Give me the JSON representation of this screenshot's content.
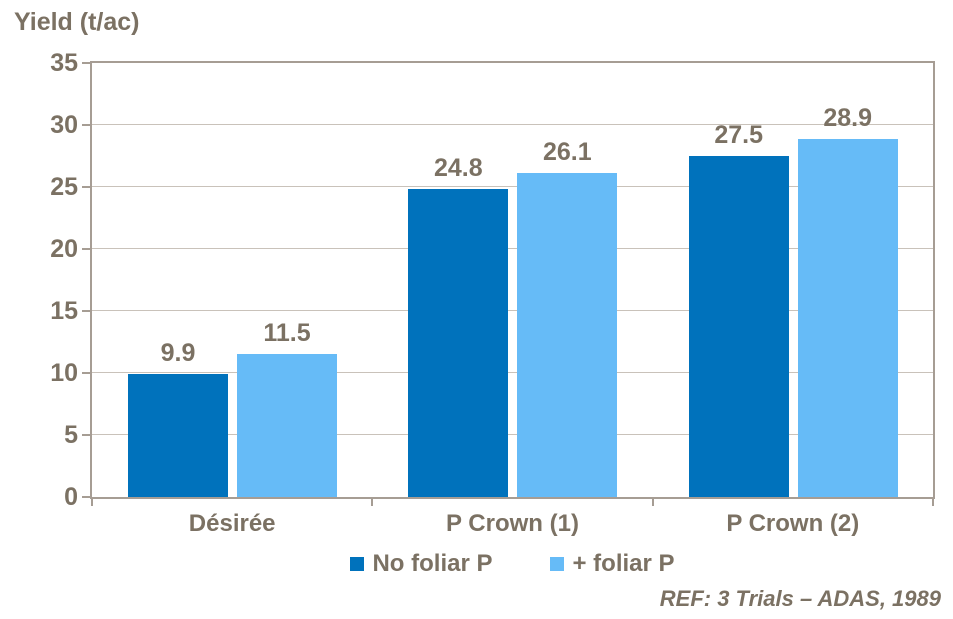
{
  "chart_data": {
    "type": "bar",
    "title": "Yield (t/ac)",
    "ylabel": "Yield (t/ac)",
    "xlabel": "",
    "categories": [
      "Désirée",
      "P Crown (1)",
      "P Crown (2)"
    ],
    "series": [
      {
        "name": "No foliar P",
        "color": "#0072BC",
        "values": [
          9.9,
          24.8,
          27.5
        ]
      },
      {
        "name": "+ foliar P",
        "color": "#66BBF7",
        "values": [
          11.5,
          26.1,
          28.9
        ]
      }
    ],
    "ylim": [
      0,
      35
    ],
    "yticks": [
      0,
      5,
      10,
      15,
      20,
      25,
      30,
      35
    ],
    "grid": true,
    "data_labels": true,
    "legend_position": "bottom"
  },
  "footer": {
    "ref_note": "REF: 3 Trials – ADAS, 1989"
  },
  "colors": {
    "text": "#7B7163",
    "axis": "#A69D94",
    "gridline": "#C9C2BA",
    "background": "#FFFFFF",
    "series_1": "#0072BC",
    "series_2": "#66BBF7"
  }
}
